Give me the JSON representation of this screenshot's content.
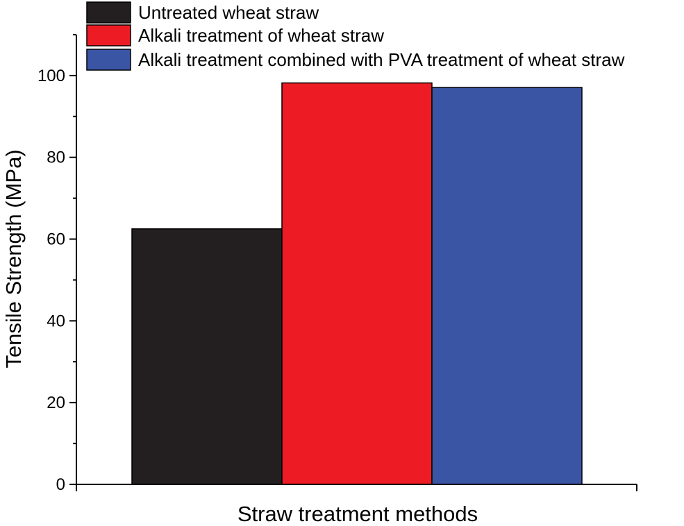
{
  "chart_data": {
    "type": "bar",
    "title": "",
    "xlabel": "Straw treatment methods",
    "ylabel": "Tensile Strength (MPa)",
    "ylim": [
      0,
      110
    ],
    "yticks": [
      0,
      20,
      40,
      60,
      80,
      100
    ],
    "yminor_step": 10,
    "grid": false,
    "legend_position": "top-left",
    "series": [
      {
        "name": "Untreated wheat straw",
        "value": 62.5,
        "color": "#231f20"
      },
      {
        "name": "Alkali treatment of wheat straw",
        "value": 98.2,
        "color": "#ed1c24"
      },
      {
        "name": "Alkali treatment combined with PVA treatment of wheat straw",
        "value": 97.1,
        "color": "#3a55a4"
      }
    ]
  }
}
